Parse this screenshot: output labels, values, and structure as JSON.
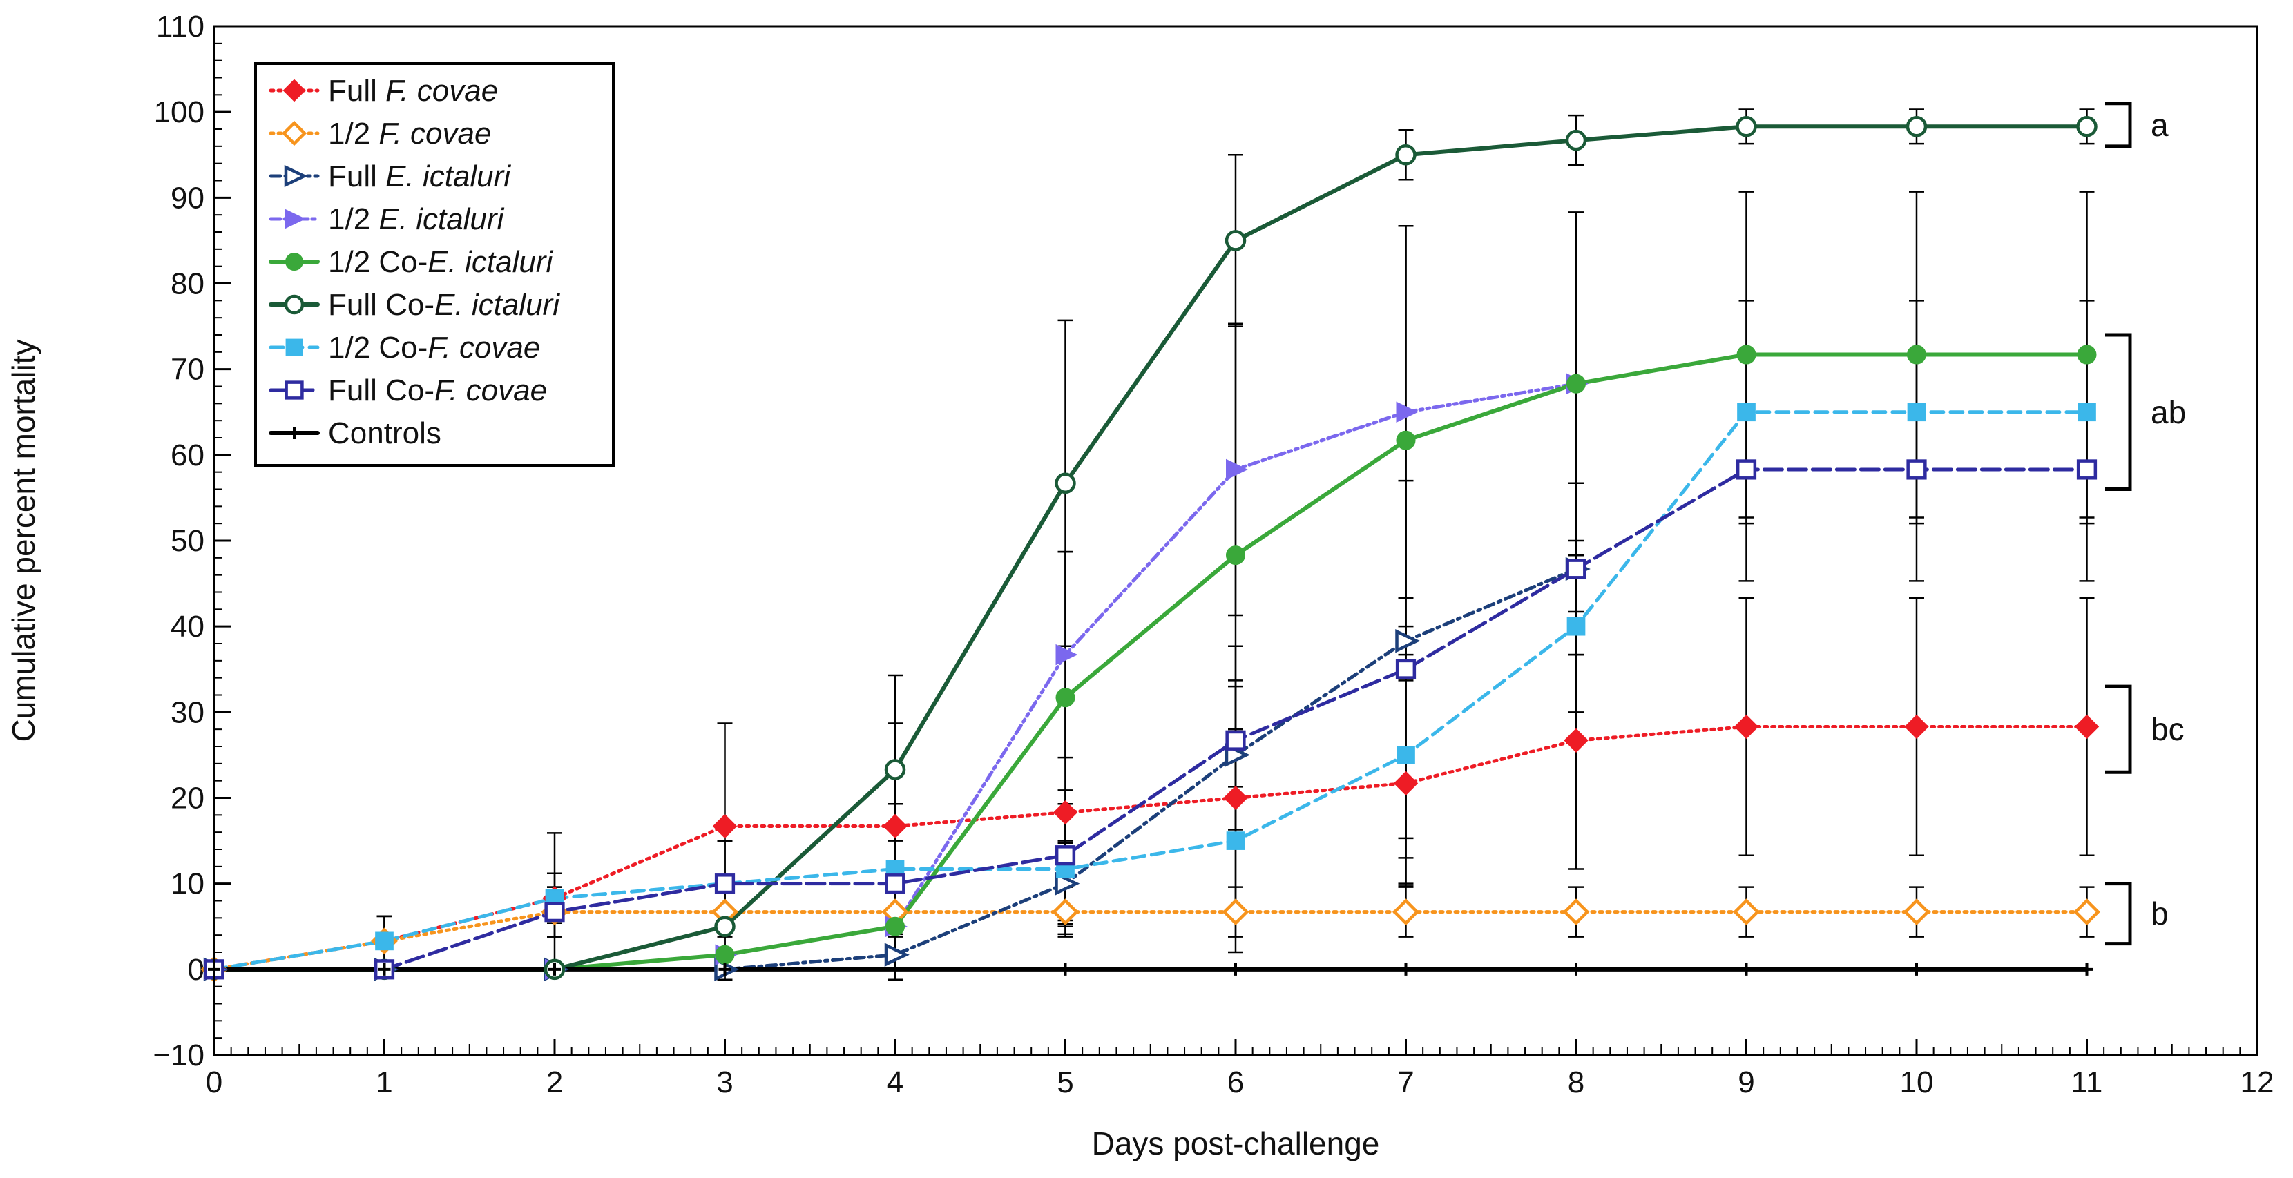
{
  "chart_data": {
    "type": "line",
    "title": "",
    "xlabel": "Days post-challenge",
    "ylabel": "Cumulative percent mortality",
    "xlim": [
      0,
      12
    ],
    "ylim": [
      -10,
      110
    ],
    "x_ticks": [
      0,
      1,
      2,
      3,
      4,
      5,
      6,
      7,
      8,
      9,
      10,
      11,
      12
    ],
    "y_ticks": [
      -10,
      0,
      10,
      20,
      30,
      40,
      50,
      60,
      70,
      80,
      90,
      100,
      110
    ],
    "x_tick_labels": [
      "0",
      "1",
      "2",
      "3",
      "4",
      "5",
      "6",
      "7",
      "8",
      "9",
      "10",
      "11",
      "12"
    ],
    "y_tick_labels": [
      "−10",
      "0",
      "10",
      "20",
      "30",
      "40",
      "50",
      "60",
      "70",
      "80",
      "90",
      "100",
      "110"
    ],
    "legend_position": "top-left",
    "series": [
      {
        "name": "Full F. covae",
        "legend_prefix": "Full ",
        "legend_italic": "F. covae",
        "legend_suffix": "",
        "color": "#ee1c25",
        "line_style": "dotted",
        "marker": "diamond",
        "marker_filled": true,
        "x": [
          0,
          1,
          2,
          3,
          4,
          5,
          6,
          7,
          8,
          9,
          10,
          11
        ],
        "values": [
          0,
          3.3,
          8.3,
          16.7,
          16.7,
          18.3,
          20.0,
          21.7,
          26.7,
          28.3,
          28.3,
          28.3
        ],
        "errors": [
          0,
          2.9,
          7.6,
          12.0,
          12.0,
          13.0,
          13.0,
          12.0,
          15.0,
          15.0,
          15.0,
          15.0
        ]
      },
      {
        "name": "1/2 F. covae",
        "legend_prefix": "1/2 ",
        "legend_italic": "F. covae",
        "legend_suffix": "",
        "color": "#f7941d",
        "line_style": "dotted",
        "marker": "diamond",
        "marker_filled": false,
        "x": [
          0,
          1,
          2,
          3,
          4,
          5,
          6,
          7,
          8,
          9,
          10,
          11
        ],
        "values": [
          0,
          3.3,
          6.7,
          6.7,
          6.7,
          6.7,
          6.7,
          6.7,
          6.7,
          6.7,
          6.7,
          6.7
        ],
        "errors": [
          0,
          2.9,
          2.9,
          2.9,
          2.9,
          2.9,
          2.9,
          2.9,
          2.9,
          2.9,
          2.9,
          2.9
        ]
      },
      {
        "name": "Full E. ictaluri",
        "legend_prefix": "Full ",
        "legend_italic": "E. ictaluri",
        "legend_suffix": "",
        "color": "#1c3f7a",
        "line_style": "dashdot",
        "marker": "triangle-right",
        "marker_filled": false,
        "x": [
          0,
          1,
          2,
          3,
          4,
          5,
          6,
          7,
          8
        ],
        "values": [
          0,
          0,
          0,
          0,
          1.7,
          10.0,
          25.0,
          38.3,
          46.7
        ],
        "errors": [
          0,
          0,
          0,
          0,
          2.9,
          5.0,
          8.7,
          23.0,
          10.0
        ]
      },
      {
        "name": "1/2 E. ictaluri",
        "legend_prefix": "1/2 ",
        "legend_italic": "E. ictaluri",
        "legend_suffix": "",
        "color": "#7b68ee",
        "line_style": "dashdotdot",
        "marker": "triangle-right",
        "marker_filled": true,
        "x": [
          0,
          1,
          2,
          3,
          4,
          5,
          6,
          7,
          8
        ],
        "values": [
          0,
          0,
          0,
          1.7,
          5.0,
          36.7,
          58.3,
          65.0,
          68.3
        ],
        "errors": [
          0,
          0,
          0,
          2.9,
          5.0,
          12.0,
          17.0,
          21.7,
          20.0
        ]
      },
      {
        "name": "1/2 Co-E. ictaluri",
        "legend_prefix": "1/2 Co-",
        "legend_italic": "E. ictaluri",
        "legend_suffix": "",
        "color": "#3aa83a",
        "line_style": "solid",
        "marker": "circle",
        "marker_filled": true,
        "x": [
          0,
          1,
          2,
          3,
          4,
          5,
          6,
          7,
          8,
          9,
          10,
          11
        ],
        "values": [
          0,
          0,
          0,
          1.7,
          5.0,
          31.7,
          48.3,
          61.7,
          68.3,
          71.7,
          71.7,
          71.7
        ],
        "errors": [
          0,
          0,
          0,
          2.9,
          5.0,
          17.0,
          27.0,
          25.0,
          20.0,
          19.0,
          19.0,
          19.0
        ]
      },
      {
        "name": "Full Co-E. ictaluri",
        "legend_prefix": "Full Co-",
        "legend_italic": "E. ictaluri",
        "legend_suffix": "",
        "color": "#1a5a37",
        "line_style": "solid",
        "marker": "circle",
        "marker_filled": false,
        "x": [
          0,
          1,
          2,
          3,
          4,
          5,
          6,
          7,
          8,
          9,
          10,
          11
        ],
        "values": [
          0,
          0,
          0,
          5.0,
          23.3,
          56.7,
          85.0,
          95.0,
          96.7,
          98.3,
          98.3,
          98.3
        ],
        "errors": [
          0,
          0,
          0,
          5.0,
          11.0,
          19.0,
          10.0,
          2.9,
          2.9,
          2.0,
          2.0,
          2.0
        ]
      },
      {
        "name": "1/2 Co-F. covae",
        "legend_prefix": "1/2 Co-",
        "legend_italic": "F. covae",
        "legend_suffix": "",
        "color": "#3bb7ea",
        "line_style": "dashed",
        "marker": "square",
        "marker_filled": true,
        "x": [
          0,
          1,
          2,
          3,
          4,
          5,
          6,
          7,
          8,
          9,
          10,
          11
        ],
        "values": [
          0,
          3.3,
          8.3,
          10.0,
          11.7,
          11.7,
          15.0,
          25.0,
          40.0,
          65.0,
          65.0,
          65.0
        ],
        "errors": [
          0,
          2.9,
          2.9,
          5.0,
          7.6,
          7.6,
          13.0,
          15.0,
          10.0,
          13.0,
          13.0,
          13.0
        ]
      },
      {
        "name": "Full Co-F. covae",
        "legend_prefix": "Full Co-",
        "legend_italic": "F. covae",
        "legend_suffix": "",
        "color": "#2e2ba0",
        "line_style": "longdash",
        "marker": "square",
        "marker_filled": false,
        "x": [
          0,
          1,
          2,
          3,
          4,
          5,
          6,
          7,
          8,
          9,
          10,
          11
        ],
        "values": [
          0,
          0,
          6.7,
          10.0,
          10.0,
          13.3,
          26.7,
          35.0,
          46.7,
          58.3,
          58.3,
          58.3
        ],
        "errors": [
          0,
          0,
          2.9,
          5.0,
          5.0,
          7.6,
          11.0,
          22.0,
          10.0,
          13.0,
          13.0,
          13.0
        ]
      },
      {
        "name": "Controls",
        "legend_prefix": "Controls",
        "legend_italic": "",
        "legend_suffix": "",
        "color": "#000000",
        "line_style": "solid",
        "marker": "plus",
        "marker_filled": true,
        "x": [
          0,
          1,
          2,
          3,
          4,
          5,
          6,
          7,
          8,
          9,
          10,
          11
        ],
        "values": [
          0,
          0,
          0,
          0,
          0,
          0,
          0,
          0,
          0,
          0,
          0,
          0
        ],
        "errors": [
          0,
          0,
          0,
          0,
          0,
          0,
          0,
          0,
          0,
          0,
          0,
          0
        ]
      }
    ],
    "annotations": [
      {
        "label": "a",
        "y_low": 96,
        "y_high": 101
      },
      {
        "label": "ab",
        "y_low": 56,
        "y_high": 74
      },
      {
        "label": "bc",
        "y_low": 23,
        "y_high": 33
      },
      {
        "label": "b",
        "y_low": 3,
        "y_high": 10
      }
    ]
  }
}
